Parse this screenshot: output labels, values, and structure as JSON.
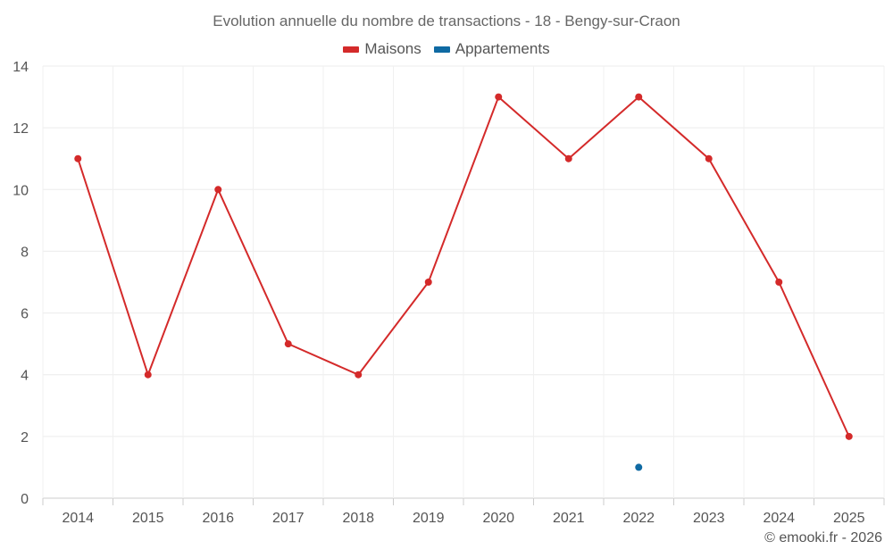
{
  "chart_data": {
    "type": "line",
    "title": "Evolution annuelle du nombre de transactions - 18 - Bengy-sur-Craon",
    "categories": [
      "2014",
      "2015",
      "2016",
      "2017",
      "2018",
      "2019",
      "2020",
      "2021",
      "2022",
      "2023",
      "2024",
      "2025"
    ],
    "ylim": [
      0,
      14
    ],
    "yticks": [
      "0",
      "2",
      "4",
      "6",
      "8",
      "10",
      "12",
      "14"
    ],
    "grid": true,
    "legend_position": "top-center",
    "series": [
      {
        "name": "Maisons",
        "color": "#d42a2a",
        "line": true,
        "values": [
          11,
          4,
          10,
          5,
          4,
          7,
          13,
          11,
          13,
          11,
          7,
          2
        ]
      },
      {
        "name": "Appartements",
        "color": "#0f6aa3",
        "line": false,
        "values": [
          null,
          null,
          null,
          null,
          null,
          null,
          null,
          null,
          1,
          null,
          null,
          null
        ]
      }
    ]
  },
  "credit": "© emooki.fr - 2026"
}
